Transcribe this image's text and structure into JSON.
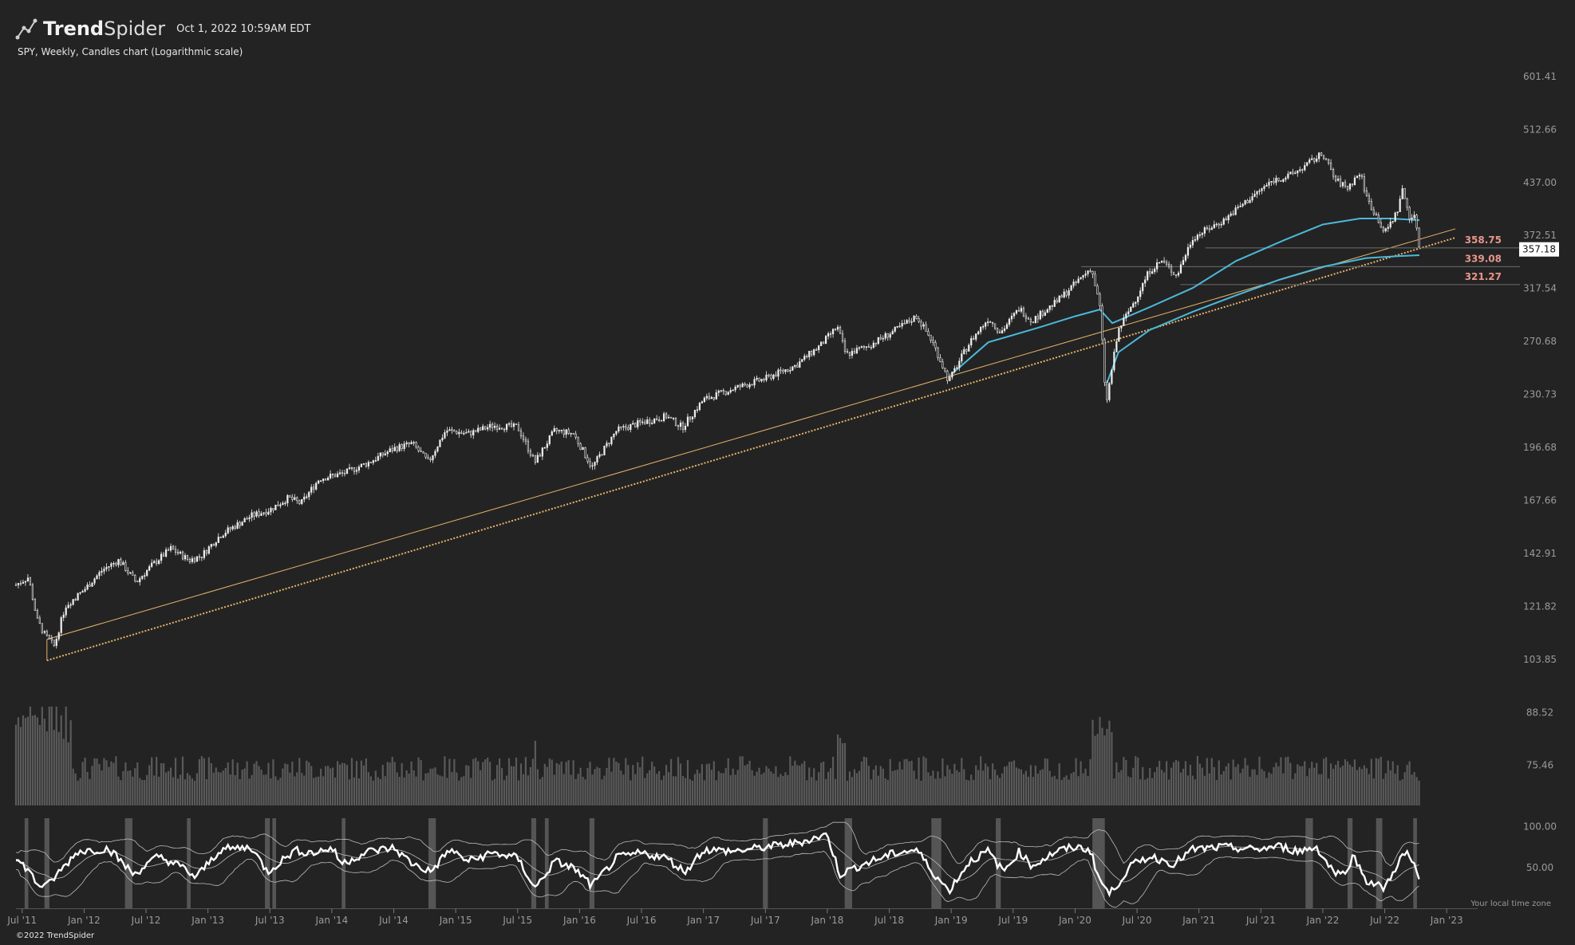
{
  "header": {
    "brand_bold": "Trend",
    "brand_light": "Spider",
    "timestamp": "Oct 1, 2022 10:59AM EDT",
    "subtitle": "SPY, Weekly, Candles chart (Logarithmic scale)"
  },
  "footer": {
    "copyright": "©2022 TrendSpider",
    "local_time_note": "Your local time zone"
  },
  "colors": {
    "background": "#232323",
    "candle": "#f0f0f0",
    "volume": "#5a5a5a",
    "moving_average": "#4cb8d8",
    "trendline": "#e8b46a",
    "level_line": "#6e6e6e",
    "level_text": "#e8968a",
    "rsi_line": "#ffffff",
    "rsi_band": "#bdbdbd",
    "rsi_shade": "#555555",
    "axis_text": "#9a9a9a"
  },
  "chart_data": {
    "type": "candlestick",
    "symbol": "SPY",
    "timeframe": "Weekly",
    "scale": "log",
    "y_ticks": [
      601.41,
      512.66,
      437.0,
      372.51,
      317.54,
      270.68,
      230.73,
      196.68,
      167.66,
      142.91,
      121.82,
      103.85,
      88.52,
      75.46
    ],
    "ylim": [
      68.5,
      640
    ],
    "x_ticks": [
      "Jul '11",
      "Jan '12",
      "Jul '12",
      "Jan '13",
      "Jul '13",
      "Jan '14",
      "Jul '14",
      "Jan '15",
      "Jul '15",
      "Jan '16",
      "Jul '16",
      "Jan '17",
      "Jul '17",
      "Jan '18",
      "Jul '18",
      "Jan '19",
      "Jul '19",
      "Jan '20",
      "Jul '20",
      "Jan '21",
      "Jul '21",
      "Jan '22",
      "Jul '22",
      "Jan '23"
    ],
    "x_tick_times": [
      2011.5,
      2012.0,
      2012.5,
      2013.0,
      2013.5,
      2014.0,
      2014.5,
      2015.0,
      2015.5,
      2016.0,
      2016.5,
      2017.0,
      2017.5,
      2018.0,
      2018.5,
      2019.0,
      2019.5,
      2020.0,
      2020.5,
      2021.0,
      2021.5,
      2022.0,
      2022.5,
      2023.0
    ],
    "xlim": [
      2011.45,
      2023.25
    ],
    "last_price": 357.18,
    "price_path": [
      [
        2011.45,
        130
      ],
      [
        2011.55,
        133
      ],
      [
        2011.62,
        117
      ],
      [
        2011.68,
        112
      ],
      [
        2011.76,
        108
      ],
      [
        2011.85,
        122
      ],
      [
        2012.0,
        128
      ],
      [
        2012.15,
        136
      ],
      [
        2012.28,
        140
      ],
      [
        2012.42,
        131
      ],
      [
        2012.55,
        138
      ],
      [
        2012.7,
        145
      ],
      [
        2012.85,
        140
      ],
      [
        2012.95,
        142
      ],
      [
        2013.1,
        151
      ],
      [
        2013.35,
        160
      ],
      [
        2013.5,
        163
      ],
      [
        2013.65,
        169
      ],
      [
        2013.75,
        166
      ],
      [
        2013.9,
        179
      ],
      [
        2014.1,
        182
      ],
      [
        2014.3,
        188
      ],
      [
        2014.5,
        196
      ],
      [
        2014.65,
        199
      ],
      [
        2014.78,
        188
      ],
      [
        2014.92,
        207
      ],
      [
        2015.1,
        205
      ],
      [
        2015.3,
        210
      ],
      [
        2015.5,
        209
      ],
      [
        2015.64,
        188
      ],
      [
        2015.8,
        207
      ],
      [
        2015.95,
        205
      ],
      [
        2016.1,
        185
      ],
      [
        2016.3,
        207
      ],
      [
        2016.5,
        212
      ],
      [
        2016.7,
        216
      ],
      [
        2016.83,
        209
      ],
      [
        2017.0,
        227
      ],
      [
        2017.25,
        235
      ],
      [
        2017.5,
        242
      ],
      [
        2017.75,
        252
      ],
      [
        2017.95,
        268
      ],
      [
        2018.08,
        283
      ],
      [
        2018.15,
        260
      ],
      [
        2018.35,
        268
      ],
      [
        2018.55,
        280
      ],
      [
        2018.72,
        292
      ],
      [
        2018.85,
        270
      ],
      [
        2018.98,
        240
      ],
      [
        2019.15,
        270
      ],
      [
        2019.3,
        290
      ],
      [
        2019.4,
        278
      ],
      [
        2019.55,
        299
      ],
      [
        2019.65,
        288
      ],
      [
        2019.85,
        305
      ],
      [
        2020.0,
        322
      ],
      [
        2020.13,
        338
      ],
      [
        2020.2,
        300
      ],
      [
        2020.25,
        222
      ],
      [
        2020.35,
        280
      ],
      [
        2020.5,
        310
      ],
      [
        2020.6,
        335
      ],
      [
        2020.7,
        345
      ],
      [
        2020.82,
        330
      ],
      [
        2020.95,
        370
      ],
      [
        2021.2,
        390
      ],
      [
        2021.4,
        415
      ],
      [
        2021.6,
        440
      ],
      [
        2021.72,
        445
      ],
      [
        2021.82,
        455
      ],
      [
        2022.0,
        477
      ],
      [
        2022.1,
        440
      ],
      [
        2022.2,
        430
      ],
      [
        2022.3,
        450
      ],
      [
        2022.36,
        415
      ],
      [
        2022.45,
        390
      ],
      [
        2022.5,
        375
      ],
      [
        2022.6,
        400
      ],
      [
        2022.64,
        428
      ],
      [
        2022.7,
        395
      ],
      [
        2022.75,
        392
      ],
      [
        2022.78,
        357
      ]
    ],
    "moving_averages": [
      {
        "points": [
          [
            2019.0,
            245
          ],
          [
            2019.3,
            270
          ],
          [
            2019.7,
            282
          ],
          [
            2020.0,
            292
          ],
          [
            2020.2,
            298
          ],
          [
            2020.3,
            286
          ],
          [
            2020.6,
            300
          ],
          [
            2020.95,
            318
          ],
          [
            2021.3,
            345
          ],
          [
            2021.7,
            368
          ],
          [
            2022.0,
            385
          ],
          [
            2022.3,
            392
          ],
          [
            2022.55,
            392
          ],
          [
            2022.78,
            390
          ]
        ]
      },
      {
        "points": [
          [
            2020.25,
            237
          ],
          [
            2020.35,
            262
          ],
          [
            2020.6,
            280
          ],
          [
            2020.95,
            296
          ],
          [
            2021.3,
            311
          ],
          [
            2021.65,
            326
          ],
          [
            2022.0,
            339
          ],
          [
            2022.35,
            348
          ],
          [
            2022.6,
            350
          ],
          [
            2022.78,
            351
          ]
        ]
      }
    ],
    "trendlines": [
      {
        "style": "solid",
        "p1": [
          2011.7,
          110.3
        ],
        "p2": [
          2023.07,
          380
        ]
      },
      {
        "style": "dotted",
        "p1": [
          2011.7,
          103.5
        ],
        "p2": [
          2023.07,
          370
        ]
      }
    ],
    "levels": [
      {
        "value": 358.75,
        "label": "358.75",
        "x_start": 2021.05
      },
      {
        "value": 339.08,
        "label": "339.08",
        "x_start": 2020.05
      },
      {
        "value": 321.27,
        "label": "321.27",
        "x_start": 2020.85
      }
    ],
    "rsi": {
      "y_ticks": [
        100.0,
        50.0
      ],
      "ylim": [
        0,
        110
      ],
      "path": [
        [
          2011.45,
          60
        ],
        [
          2011.55,
          48
        ],
        [
          2011.62,
          30
        ],
        [
          2011.7,
          28
        ],
        [
          2011.8,
          45
        ],
        [
          2011.95,
          70
        ],
        [
          2012.2,
          73
        ],
        [
          2012.4,
          42
        ],
        [
          2012.6,
          64
        ],
        [
          2012.8,
          50
        ],
        [
          2012.9,
          38
        ],
        [
          2013.1,
          72
        ],
        [
          2013.35,
          75
        ],
        [
          2013.48,
          45
        ],
        [
          2013.7,
          71
        ],
        [
          2013.85,
          68
        ],
        [
          2014.0,
          74
        ],
        [
          2014.08,
          55
        ],
        [
          2014.3,
          70
        ],
        [
          2014.5,
          74
        ],
        [
          2014.65,
          55
        ],
        [
          2014.8,
          45
        ],
        [
          2014.95,
          72
        ],
        [
          2015.1,
          58
        ],
        [
          2015.3,
          68
        ],
        [
          2015.5,
          62
        ],
        [
          2015.64,
          25
        ],
        [
          2015.8,
          58
        ],
        [
          2015.95,
          50
        ],
        [
          2016.1,
          28
        ],
        [
          2016.3,
          62
        ],
        [
          2016.5,
          68
        ],
        [
          2016.7,
          62
        ],
        [
          2016.85,
          45
        ],
        [
          2017.0,
          72
        ],
        [
          2017.25,
          70
        ],
        [
          2017.5,
          75
        ],
        [
          2017.75,
          80
        ],
        [
          2018.0,
          90
        ],
        [
          2018.1,
          42
        ],
        [
          2018.3,
          55
        ],
        [
          2018.55,
          68
        ],
        [
          2018.72,
          72
        ],
        [
          2018.85,
          45
        ],
        [
          2018.98,
          22
        ],
        [
          2019.15,
          58
        ],
        [
          2019.3,
          70
        ],
        [
          2019.42,
          45
        ],
        [
          2019.55,
          70
        ],
        [
          2019.65,
          52
        ],
        [
          2019.85,
          70
        ],
        [
          2020.0,
          75
        ],
        [
          2020.12,
          72
        ],
        [
          2020.2,
          35
        ],
        [
          2020.28,
          18
        ],
        [
          2020.45,
          52
        ],
        [
          2020.6,
          64
        ],
        [
          2020.8,
          55
        ],
        [
          2020.95,
          72
        ],
        [
          2021.2,
          75
        ],
        [
          2021.45,
          72
        ],
        [
          2021.65,
          76
        ],
        [
          2021.8,
          70
        ],
        [
          2021.95,
          75
        ],
        [
          2022.05,
          52
        ],
        [
          2022.15,
          40
        ],
        [
          2022.25,
          64
        ],
        [
          2022.35,
          35
        ],
        [
          2022.45,
          28
        ],
        [
          2022.5,
          25
        ],
        [
          2022.62,
          60
        ],
        [
          2022.68,
          68
        ],
        [
          2022.75,
          48
        ],
        [
          2022.78,
          32
        ]
      ],
      "shaded_periods": [
        [
          2011.52,
          2011.55
        ],
        [
          2011.68,
          2011.72
        ],
        [
          2012.33,
          2012.39
        ],
        [
          2012.83,
          2012.86
        ],
        [
          2013.46,
          2013.5
        ],
        [
          2013.52,
          2013.55
        ],
        [
          2014.08,
          2014.11
        ],
        [
          2014.78,
          2014.84
        ],
        [
          2015.61,
          2015.65
        ],
        [
          2015.72,
          2015.75
        ],
        [
          2016.08,
          2016.12
        ],
        [
          2017.48,
          2017.52
        ],
        [
          2018.14,
          2018.2
        ],
        [
          2018.84,
          2018.92
        ],
        [
          2019.36,
          2019.4
        ],
        [
          2020.14,
          2020.24
        ],
        [
          2021.86,
          2021.92
        ],
        [
          2022.2,
          2022.24
        ],
        [
          2022.43,
          2022.48
        ],
        [
          2022.73,
          2022.76
        ]
      ]
    }
  }
}
